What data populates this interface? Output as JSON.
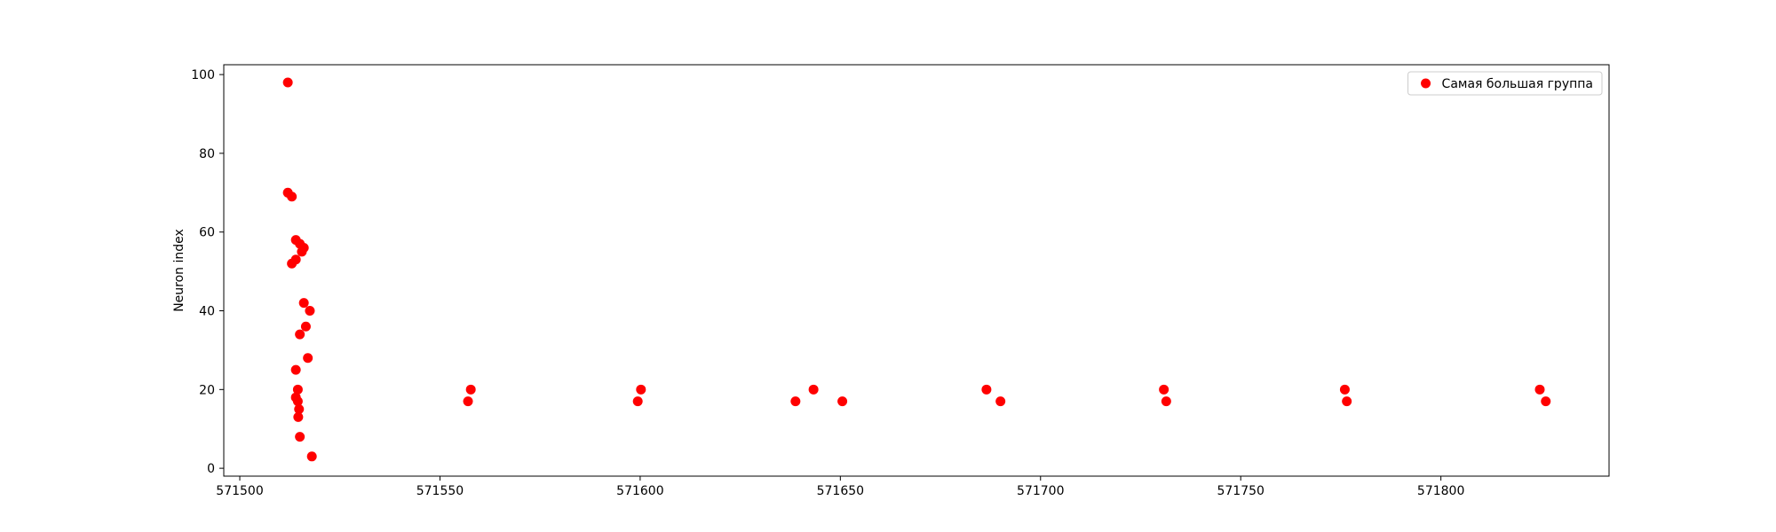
{
  "chart_data": {
    "type": "scatter",
    "title": "",
    "xlabel": "",
    "ylabel": "Neuron index",
    "xlim": [
      571496,
      571842
    ],
    "ylim": [
      -2,
      102.5
    ],
    "xticks": [
      571500,
      571550,
      571600,
      571650,
      571700,
      571750,
      571800
    ],
    "yticks": [
      0,
      20,
      40,
      60,
      80,
      100
    ],
    "grid": false,
    "legend": {
      "position": "upper right",
      "entries": [
        "Самая большая группа"
      ]
    },
    "series": [
      {
        "name": "Самая большая группа",
        "color": "#ff0000",
        "marker": "circle",
        "points": [
          [
            571512,
            98
          ],
          [
            571512,
            70
          ],
          [
            571513,
            69
          ],
          [
            571514,
            58
          ],
          [
            571515,
            57
          ],
          [
            571516,
            56
          ],
          [
            571515.5,
            55
          ],
          [
            571514,
            53
          ],
          [
            571513,
            52
          ],
          [
            571516,
            42
          ],
          [
            571517.5,
            40
          ],
          [
            571516.5,
            36
          ],
          [
            571515,
            34
          ],
          [
            571517,
            28
          ],
          [
            571514,
            25
          ],
          [
            571514.5,
            20
          ],
          [
            571514,
            18
          ],
          [
            571514.5,
            17
          ],
          [
            571514.8,
            15
          ],
          [
            571514.6,
            13
          ],
          [
            571515,
            8
          ],
          [
            571518,
            3
          ],
          [
            571557,
            17
          ],
          [
            571557.7,
            20
          ],
          [
            571599.4,
            17
          ],
          [
            571600.2,
            20
          ],
          [
            571638.8,
            17
          ],
          [
            571643.3,
            20
          ],
          [
            571650.5,
            17
          ],
          [
            571686.5,
            20
          ],
          [
            571690,
            17
          ],
          [
            571730.8,
            20
          ],
          [
            571731.4,
            17
          ],
          [
            571776,
            20
          ],
          [
            571776.5,
            17
          ],
          [
            571824.7,
            20
          ],
          [
            571826.2,
            17
          ]
        ]
      }
    ]
  }
}
